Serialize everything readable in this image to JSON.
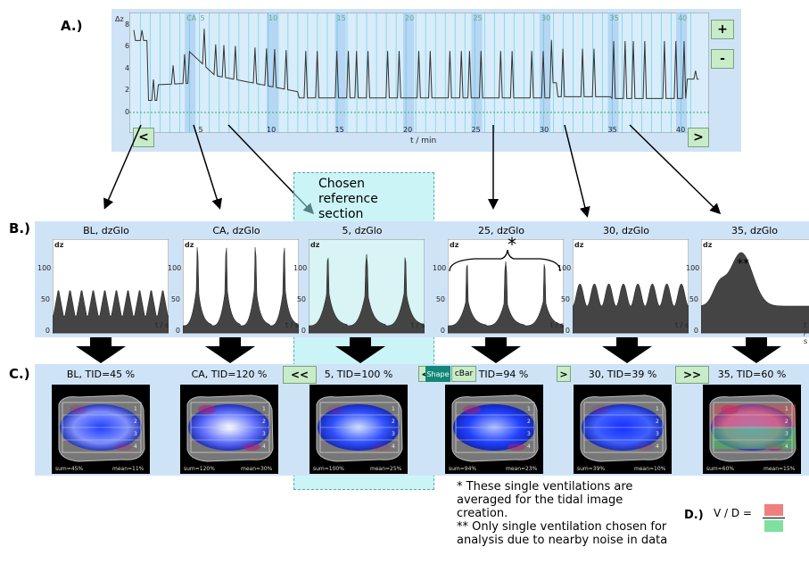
{
  "panel_labels": {
    "a": "A.)",
    "b": "B.)",
    "c": "C.)",
    "d": "D.)"
  },
  "trend": {
    "y_label": "Δz",
    "y_ticks": [
      "8",
      "6",
      "4",
      "2",
      "0"
    ],
    "x_ticks": [
      "5",
      "10",
      "15",
      "20",
      "25",
      "30",
      "35",
      "40"
    ],
    "x_label": "t / min",
    "section_numbers": [
      "CA",
      "5",
      "10",
      "15",
      "20",
      "25",
      "30",
      "35",
      "40"
    ],
    "zoom_in": "+",
    "zoom_out": "-",
    "scroll_left": "<",
    "scroll_right": ">"
  },
  "chosen_reference": "Chosen reference section",
  "sections": [
    {
      "title": "BL, dzGlo",
      "y_ticks": [
        "100",
        "50",
        "0"
      ],
      "x_unit": "t / s",
      "peaks": 10
    },
    {
      "title": "CA, dzGlo",
      "y_ticks": [
        "100",
        "50",
        "0"
      ],
      "x_unit": "t / s",
      "peaks": 4
    },
    {
      "title": "5, dzGlo",
      "y_ticks": [
        "100",
        "50",
        "0"
      ],
      "x_unit": "t / s",
      "peaks": 3
    },
    {
      "title": "25, dzGlo",
      "y_ticks": [
        "100",
        "50",
        "0"
      ],
      "x_unit": "t / s",
      "peaks": 3,
      "mark": "*"
    },
    {
      "title": "30, dzGlo",
      "y_ticks": [
        "100",
        "50",
        "0"
      ],
      "x_unit": "t / s",
      "peaks": 8
    },
    {
      "title": "35, dzGlo",
      "y_ticks": [
        "100",
        "50",
        "0"
      ],
      "x_unit": "t / s",
      "peaks": 1,
      "mark": "**"
    }
  ],
  "dz_label": "dz",
  "images": [
    {
      "title": "BL, TID=45 %",
      "sum": "sum=45%",
      "mean": "mean=11%"
    },
    {
      "title": "CA, TID=120 %",
      "sum": "sum=120%",
      "mean": "mean=30%"
    },
    {
      "title": "5, TID=100 %",
      "sum": "sum=100%",
      "mean": "mean=25%"
    },
    {
      "title": "25, TID=94 %",
      "sum": "sum=94%",
      "mean": "mean=23%"
    },
    {
      "title": "30, TID=39 %",
      "sum": "sum=39%",
      "mean": "mean=10%"
    },
    {
      "title": "35, TID=60 %",
      "sum": "sum=60%",
      "mean": "mean=15%"
    }
  ],
  "image_controls": {
    "prev": "<<",
    "next": ">>",
    "back": "<",
    "fwd": ">",
    "shape": "Shape",
    "cbar": "cBar"
  },
  "roi_labels": [
    "1",
    "2",
    "3",
    "4"
  ],
  "notes": {
    "single": "* These single ventilations are averaged for the tidal image creation.",
    "only": "** Only single ventilation chosen for analysis due to nearby noise in data"
  },
  "vd": {
    "label": "V / D =",
    "v_color": "#f08080",
    "d_color": "#80e0a0"
  }
}
